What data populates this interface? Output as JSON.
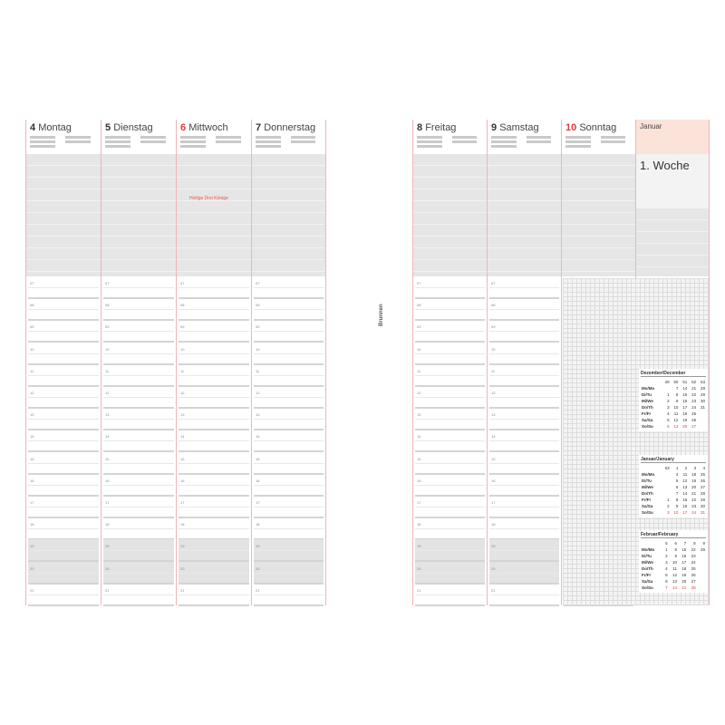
{
  "left_page": {
    "days": [
      {
        "num": "4",
        "name": "Montag",
        "red": false
      },
      {
        "num": "5",
        "name": "Dienstag",
        "red": false
      },
      {
        "num": "6",
        "name": "Mittwoch",
        "red": true,
        "note": "Heilige Drei Könige"
      },
      {
        "num": "7",
        "name": "Donnerstag",
        "red": false
      }
    ]
  },
  "right_page": {
    "days": [
      {
        "num": "8",
        "name": "Freitag",
        "red": false
      },
      {
        "num": "9",
        "name": "Samstag",
        "red": false
      },
      {
        "num": "10",
        "name": "Sonntag",
        "red": true
      }
    ],
    "month": "Januar",
    "week": "1. Woche"
  },
  "hours": [
    "07",
    "08",
    "09",
    "10",
    "11",
    "12",
    "13",
    "14",
    "15",
    "16",
    "17",
    "18",
    "19",
    "20",
    "21"
  ],
  "brand": "Brunnen",
  "mini_calendars": [
    {
      "title": "Dezember/December",
      "weeks": [
        "49",
        "50",
        "51",
        "52",
        "53"
      ],
      "rows": [
        [
          "Mo/Mo",
          "",
          "7",
          "14",
          "21",
          "28"
        ],
        [
          "Di/Tu",
          "1",
          "8",
          "15",
          "22",
          "29"
        ],
        [
          "Mi/We",
          "2",
          "9",
          "16",
          "23",
          "30"
        ],
        [
          "Do/Th",
          "3",
          "10",
          "17",
          "24",
          "31"
        ],
        [
          "Fr/Fr",
          "4",
          "11",
          "18",
          "25",
          ""
        ],
        [
          "Sa/Sa",
          "5",
          "12",
          "19",
          "26",
          ""
        ],
        [
          "So/Su",
          "6",
          "13",
          "20",
          "27",
          ""
        ]
      ]
    },
    {
      "title": "Januar/January",
      "weeks": [
        "53",
        "1",
        "2",
        "3",
        "4"
      ],
      "rows": [
        [
          "Mo/Mo",
          "",
          "4",
          "11",
          "18",
          "25"
        ],
        [
          "Di/Tu",
          "",
          "5",
          "12",
          "19",
          "26"
        ],
        [
          "Mi/We",
          "",
          "6",
          "13",
          "20",
          "27"
        ],
        [
          "Do/Th",
          "",
          "7",
          "14",
          "21",
          "28"
        ],
        [
          "Fr/Fr",
          "1",
          "8",
          "15",
          "22",
          "29"
        ],
        [
          "Sa/Sa",
          "2",
          "9",
          "16",
          "23",
          "30"
        ],
        [
          "So/Su",
          "3",
          "10",
          "17",
          "24",
          "31"
        ]
      ]
    },
    {
      "title": "Februar/February",
      "weeks": [
        "5",
        "6",
        "7",
        "8",
        "9"
      ],
      "rows": [
        [
          "Mo/Mo",
          "1",
          "8",
          "15",
          "22",
          "29"
        ],
        [
          "Di/Tu",
          "2",
          "9",
          "16",
          "23",
          ""
        ],
        [
          "Mi/We",
          "3",
          "10",
          "17",
          "24",
          ""
        ],
        [
          "Do/Th",
          "4",
          "11",
          "18",
          "25",
          ""
        ],
        [
          "Fr/Fr",
          "5",
          "12",
          "19",
          "26",
          ""
        ],
        [
          "Sa/Sa",
          "6",
          "13",
          "20",
          "27",
          ""
        ],
        [
          "So/Su",
          "7",
          "14",
          "21",
          "28",
          ""
        ]
      ]
    }
  ],
  "colors": {
    "accent": "#e23b3b",
    "rule": "#f0b5b5",
    "shade": "#e6e6e6",
    "month_bg": "#fbe3da"
  }
}
